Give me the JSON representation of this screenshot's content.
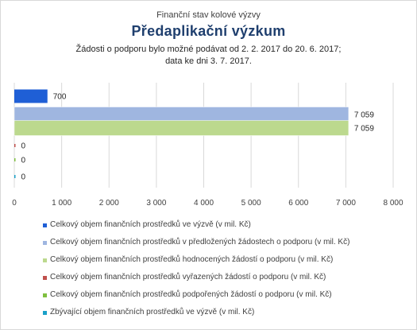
{
  "chart_data": {
    "type": "bar",
    "orientation": "horizontal",
    "kicker": "Finanční stav kolové výzvy",
    "title": "Předaplikační výzkum",
    "subtitle_lines": [
      "Žádosti o podporu bylo možné podávat od 2. 2. 2017 do 20. 6. 2017;",
      "data ke dni 3. 7. 2017."
    ],
    "xlim": [
      0,
      8000
    ],
    "xticks": [
      0,
      1000,
      2000,
      3000,
      4000,
      5000,
      6000,
      7000,
      8000
    ],
    "xtick_labels": [
      "0",
      "1 000",
      "2 000",
      "3 000",
      "4 000",
      "5 000",
      "6 000",
      "7 000",
      "8 000"
    ],
    "grid": true,
    "legend_position": "bottom",
    "series": [
      {
        "name": "Celkový objem finančních prostředků ve výzvě (v mil. Kč)",
        "value": 700,
        "label": "700",
        "color": "#1f5fd6"
      },
      {
        "name": "Celkový objem finančních prostředků v předložených žádostech o podporu (v mil. Kč)",
        "value": 7059,
        "label": "7 059",
        "color": "#9fb6e0"
      },
      {
        "name": "Celkový objem finančních prostředků hodnocených žádostí o podporu (v mil. Kč)",
        "value": 7059,
        "label": "7 059",
        "color": "#bcd98e"
      },
      {
        "name": "Celkový objem finančních prostředků vyřazených žádostí o podporu (v mil. Kč)",
        "value": 0,
        "label": "0",
        "color": "#c0504d"
      },
      {
        "name": "Celkový objem finančních prostředků podpořených žádostí o podporu (v mil. Kč)",
        "value": 0,
        "label": "0",
        "color": "#7fbf3f"
      },
      {
        "name": "Zbývající objem finančních prostředků ve výzvě (v mil. Kč)",
        "value": 0,
        "label": "0",
        "color": "#1aa0c8"
      }
    ]
  }
}
